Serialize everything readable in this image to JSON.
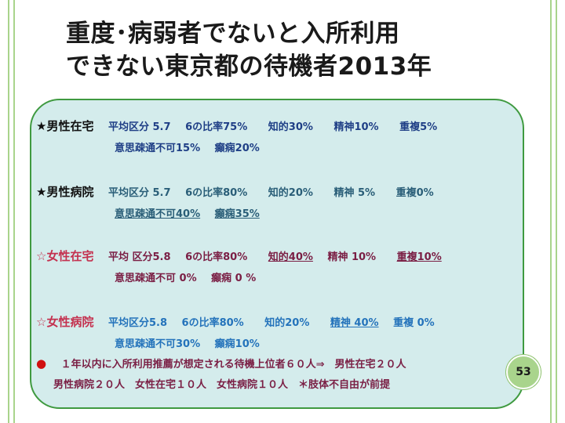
{
  "title": {
    "line1": "重度･病弱者でないと入所利用",
    "line2": "できない東京都の待機者2013年"
  },
  "groups": {
    "male_home": {
      "label": "★男性在宅",
      "avg": "平均区分 5.7",
      "ratio6": "6の比率75%",
      "intellectual": "知的30%",
      "mental": "精神10%",
      "overlap": "重複5%",
      "communication": "意思疎通不可15%",
      "epilepsy": "癲痫20%"
    },
    "male_hospital": {
      "label": "★男性病院",
      "avg": "平均区分 5.7",
      "ratio6": "6の比率80%",
      "intellectual": "知的20%",
      "mental": "精神 5%",
      "overlap": "重複0%",
      "communication": "意思疎通不可40%",
      "epilepsy": "癲痫35%"
    },
    "female_home": {
      "label": "☆女性在宅",
      "avg": "平均 区分5.8",
      "ratio6": "6の比率80%",
      "intellectual": "知的40%",
      "mental": "精神 10%",
      "overlap": "重複10%",
      "communication": "意思疎通不可  0%",
      "epilepsy": "癲痫 0 %"
    },
    "female_hospital": {
      "label": "☆女性病院",
      "avg": "平均区分5.8",
      "ratio6": "6の比率80%",
      "intellectual": "知的20%",
      "mental": "精神 40%",
      "overlap": "重複 0%",
      "communication": "意思疎通不可30%",
      "epilepsy": "癲痫10%"
    }
  },
  "note": {
    "bullet": "●",
    "line1": "１年以内に入所利用推薦が想定される待機上位者６０人⇒　男性在宅２０人",
    "line2": "男性病院２０人　女性在宅１０人　女性病院１０人　＊肢体不自由が前提"
  },
  "page_number": "53"
}
